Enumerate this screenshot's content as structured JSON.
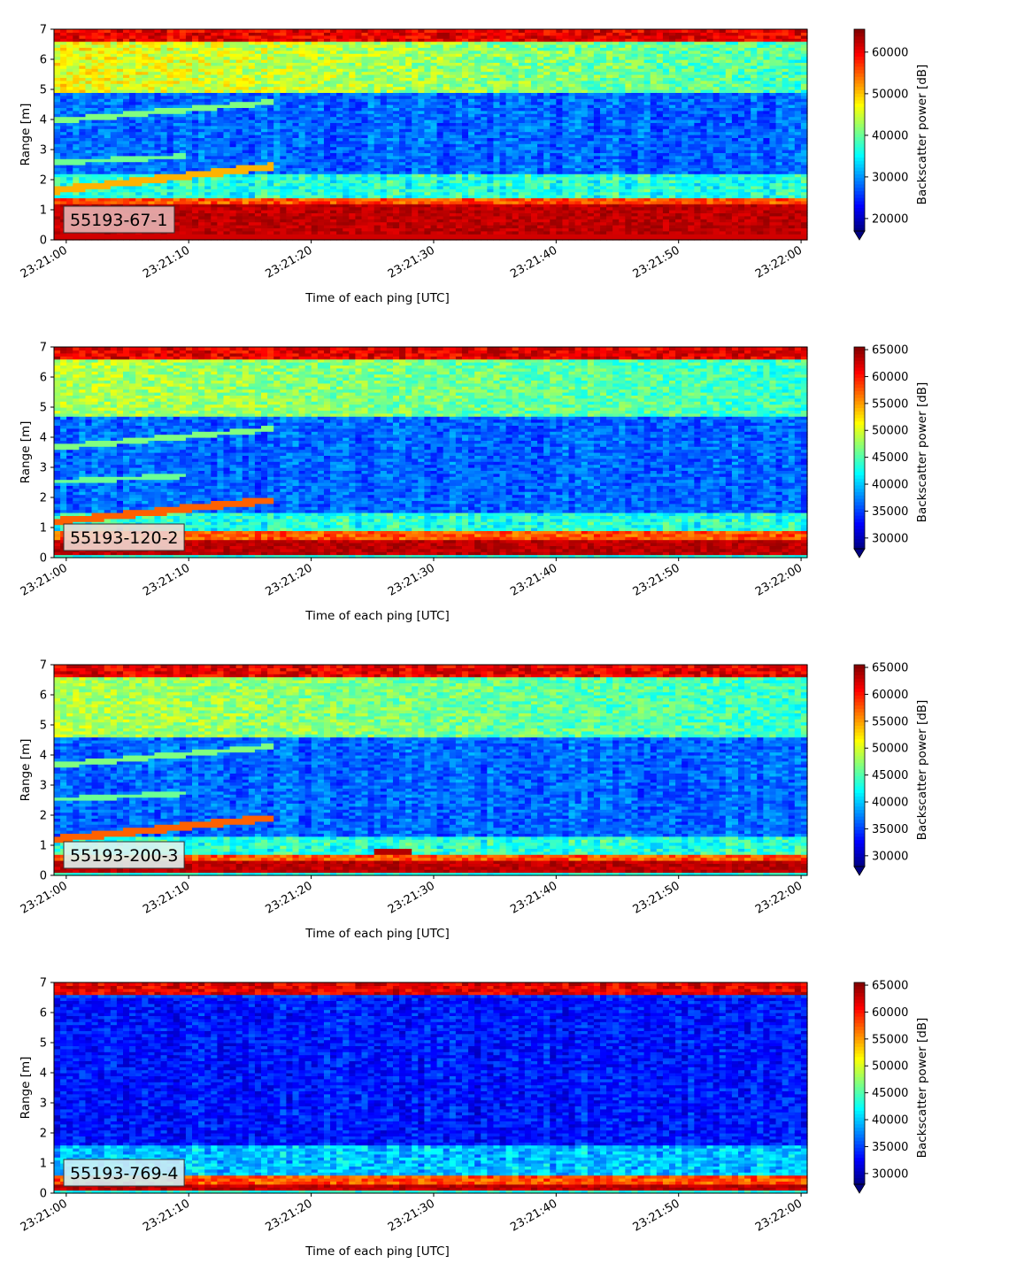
{
  "chart_data": [
    {
      "type": "heatmap",
      "label_box": "55193-67-1",
      "label_box_color": "#e6b3b3",
      "xlabel": "Time of each ping [UTC]",
      "ylabel": "Range [m]",
      "colorbar_label": "Backscatter power [dB]",
      "x_ticks": [
        "23:21:00",
        "23:21:10",
        "23:21:20",
        "23:21:30",
        "23:21:40",
        "23:21:50",
        "23:22:00"
      ],
      "y_ticks": [
        "0",
        "1",
        "2",
        "3",
        "4",
        "5",
        "6",
        "7"
      ],
      "ylim": [
        0,
        7
      ],
      "colorbar_ticks": [
        "20000",
        "30000",
        "40000",
        "50000",
        "60000"
      ],
      "vmin": 17000,
      "vmax": 65500,
      "colormap": "jet",
      "colorbar_extend": "min",
      "features": {
        "surface_band_m": [
          0.2,
          1.2
        ],
        "upper_band_m": [
          4.9,
          7.0
        ],
        "top_edge_m": [
          6.6,
          7.0
        ],
        "dark_middle_m": [
          2.2,
          4.9
        ],
        "slanted_echo_lines": "rising from 1.7 m to 2.4 m and from 4.0 m to 4.6 m over first 15 s"
      }
    },
    {
      "type": "heatmap",
      "label_box": "55193-120-2",
      "label_box_color": "#f0d8d0",
      "xlabel": "Time of each ping [UTC]",
      "ylabel": "Range [m]",
      "colorbar_label": "Backscatter power [dB]",
      "x_ticks": [
        "23:21:00",
        "23:21:10",
        "23:21:20",
        "23:21:30",
        "23:21:40",
        "23:21:50",
        "23:22:00"
      ],
      "y_ticks": [
        "0",
        "1",
        "2",
        "3",
        "4",
        "5",
        "6",
        "7"
      ],
      "ylim": [
        0,
        7
      ],
      "colorbar_ticks": [
        "30000",
        "35000",
        "40000",
        "45000",
        "50000",
        "55000",
        "60000",
        "65000"
      ],
      "vmin": 28000,
      "vmax": 65500,
      "colormap": "jet",
      "colorbar_extend": "min",
      "features": {
        "surface_band_m": [
          0.1,
          0.6
        ],
        "upper_band_m": [
          4.7,
          7.0
        ],
        "top_edge_m": [
          6.6,
          7.0
        ],
        "dark_middle_m": [
          1.5,
          4.7
        ],
        "slanted_echo_lines": "rising traces near 1.2-2.7 m and 3.7-4.3 m over first 17 s"
      }
    },
    {
      "type": "heatmap",
      "label_box": "55193-200-3",
      "label_box_color": "#dff3ef",
      "xlabel": "Time of each ping [UTC]",
      "ylabel": "Range [m]",
      "colorbar_label": "Backscatter power [dB]",
      "x_ticks": [
        "23:21:00",
        "23:21:10",
        "23:21:20",
        "23:21:30",
        "23:21:40",
        "23:21:50",
        "23:22:00"
      ],
      "y_ticks": [
        "0",
        "1",
        "2",
        "3",
        "4",
        "5",
        "6",
        "7"
      ],
      "ylim": [
        0,
        7
      ],
      "colorbar_ticks": [
        "30000",
        "35000",
        "40000",
        "45000",
        "50000",
        "55000",
        "60000",
        "65000"
      ],
      "vmin": 28000,
      "vmax": 65500,
      "colormap": "jet",
      "colorbar_extend": "min",
      "features": {
        "surface_band_m": [
          0.1,
          0.45
        ],
        "upper_band_m": [
          4.6,
          7.0
        ],
        "top_edge_m": [
          6.6,
          7.0
        ],
        "dark_middle_m": [
          1.3,
          4.6
        ],
        "slanted_echo_lines": "rising traces near 1.2-2.6 m and 3.7-4.3 m; short red echo near 0.8 m at 23:21:25-23:21:28"
      }
    },
    {
      "type": "heatmap",
      "label_box": "55193-769-4",
      "label_box_color": "#cdeef5",
      "xlabel": "Time of each ping [UTC]",
      "ylabel": "Range [m]",
      "colorbar_label": "Backscatter power [dB]",
      "x_ticks": [
        "23:21:00",
        "23:21:10",
        "23:21:20",
        "23:21:30",
        "23:21:40",
        "23:21:50",
        "23:22:00"
      ],
      "y_ticks": [
        "0",
        "1",
        "2",
        "3",
        "4",
        "5",
        "6",
        "7"
      ],
      "ylim": [
        0,
        7
      ],
      "colorbar_ticks": [
        "30000",
        "35000",
        "40000",
        "45000",
        "50000",
        "55000",
        "60000",
        "65000"
      ],
      "vmin": 28000,
      "vmax": 65500,
      "colormap": "jet",
      "colorbar_extend": "min",
      "features": {
        "surface_band_m": [
          0.1,
          0.35
        ],
        "upper_band_m": [
          6.5,
          7.0
        ],
        "top_edge_m": [
          6.6,
          7.0
        ],
        "dark_middle_m": [
          1.6,
          6.5
        ],
        "slanted_echo_lines": "none; faint brighter layer 0.5-1.6 m"
      }
    }
  ]
}
